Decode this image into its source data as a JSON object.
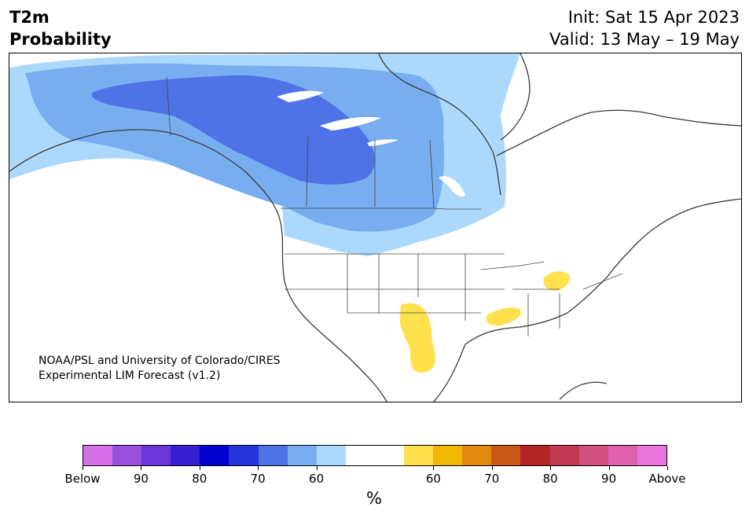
{
  "title": {
    "line1": "T2m",
    "line2": "Probability"
  },
  "init": "Init: Sat 15 Apr 2023",
  "valid": "Valid: 13 May – 19 May",
  "credit": {
    "line1": "NOAA/PSL and University of Colorado/CIRES",
    "line2": "Experimental LIM Forecast (v1.2)"
  },
  "colorbar": {
    "unit": "%",
    "tick_labels": [
      "Below",
      "90",
      "80",
      "70",
      "60",
      "60",
      "70",
      "80",
      "90",
      "Above"
    ],
    "colors": [
      "#d670e8",
      "#9b50df",
      "#6a36d9",
      "#3a1ed2",
      "#0000cc",
      "#2536dc",
      "#4f72e6",
      "#78aef0",
      "#acd9fb",
      "#ffffff",
      "#ffe14d",
      "#f0b800",
      "#e08a10",
      "#c85818",
      "#b32424",
      "#c23a54",
      "#d2507e",
      "#e060b0",
      "#e874dc"
    ]
  },
  "map": {
    "below_regions": [
      {
        "level": "60",
        "color": "#acd9fb"
      },
      {
        "level": "65",
        "color": "#78aef0"
      },
      {
        "level": "70",
        "color": "#4f72e6"
      }
    ],
    "above_regions": [
      {
        "level": "60",
        "color": "#ffe14d"
      }
    ]
  }
}
